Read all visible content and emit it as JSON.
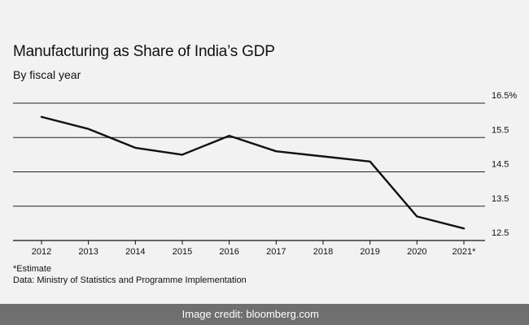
{
  "header": {
    "title": "Manufacturing as Share of India’s GDP",
    "subtitle": "By fiscal year"
  },
  "chart_data": {
    "type": "line",
    "title": "Manufacturing as Share of India’s GDP",
    "subtitle": "By fiscal year",
    "x": [
      "2012",
      "2013",
      "2014",
      "2015",
      "2016",
      "2017",
      "2018",
      "2019",
      "2020",
      "2021*"
    ],
    "series": [
      {
        "values": [
          16.1,
          15.75,
          15.2,
          15.0,
          15.55,
          15.1,
          14.95,
          14.8,
          13.2,
          12.85
        ]
      }
    ],
    "yticks": [
      12.5,
      13.5,
      14.5,
      15.5,
      16.5
    ],
    "ytick_labels": [
      "12.5",
      "13.5",
      "14.5",
      "15.5",
      "16.5%"
    ],
    "ylim": [
      12.5,
      16.5
    ],
    "ylabel": "",
    "xlabel": "",
    "grid": true,
    "line_color": "#111111"
  },
  "footer": {
    "note": "*Estimate",
    "source": "Data: Ministry of Statistics and Programme Implementation"
  },
  "credit": {
    "text": "Image credit: bloomberg.com"
  }
}
